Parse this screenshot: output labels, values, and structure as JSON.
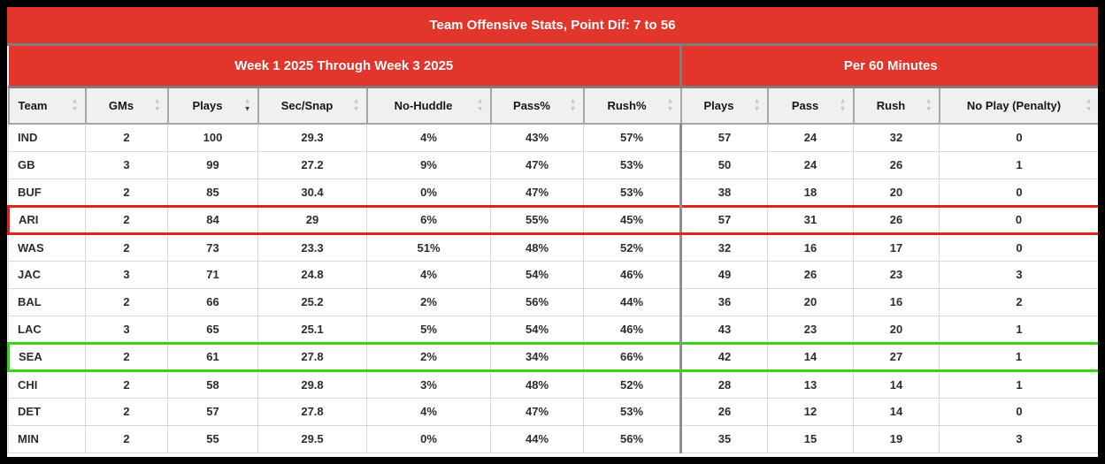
{
  "title": "Team Offensive Stats, Point Dif: 7 to 56",
  "colors": {
    "header_red": "#e2352b",
    "highlight_red": "#e0241c",
    "highlight_green": "#38d313"
  },
  "sort_icons": {
    "up": "▲",
    "down": "▼"
  },
  "sections": [
    {
      "label": "Week 1 2025 Through Week 3 2025"
    },
    {
      "label": "Per 60 Minutes"
    }
  ],
  "columns": [
    {
      "label": "Team",
      "sort": null
    },
    {
      "label": "GMs",
      "sort": null
    },
    {
      "label": "Plays",
      "sort": "desc"
    },
    {
      "label": "Sec/Snap",
      "sort": null
    },
    {
      "label": "No-Huddle",
      "sort": null
    },
    {
      "label": "Pass%",
      "sort": null
    },
    {
      "label": "Rush%",
      "sort": null
    },
    {
      "label": "Plays",
      "sort": null
    },
    {
      "label": "Pass",
      "sort": null
    },
    {
      "label": "Rush",
      "sort": null
    },
    {
      "label": "No Play (Penalty)",
      "sort": null
    }
  ],
  "rows": [
    {
      "cells": [
        "IND",
        "2",
        "100",
        "29.3",
        "4%",
        "43%",
        "57%",
        "57",
        "24",
        "32",
        "0"
      ],
      "highlight": null
    },
    {
      "cells": [
        "GB",
        "3",
        "99",
        "27.2",
        "9%",
        "47%",
        "53%",
        "50",
        "24",
        "26",
        "1"
      ],
      "highlight": null
    },
    {
      "cells": [
        "BUF",
        "2",
        "85",
        "30.4",
        "0%",
        "47%",
        "53%",
        "38",
        "18",
        "20",
        "0"
      ],
      "highlight": null
    },
    {
      "cells": [
        "ARI",
        "2",
        "84",
        "29",
        "6%",
        "55%",
        "45%",
        "57",
        "31",
        "26",
        "0"
      ],
      "highlight": "red"
    },
    {
      "cells": [
        "WAS",
        "2",
        "73",
        "23.3",
        "51%",
        "48%",
        "52%",
        "32",
        "16",
        "17",
        "0"
      ],
      "highlight": null
    },
    {
      "cells": [
        "JAC",
        "3",
        "71",
        "24.8",
        "4%",
        "54%",
        "46%",
        "49",
        "26",
        "23",
        "3"
      ],
      "highlight": null
    },
    {
      "cells": [
        "BAL",
        "2",
        "66",
        "25.2",
        "2%",
        "56%",
        "44%",
        "36",
        "20",
        "16",
        "2"
      ],
      "highlight": null
    },
    {
      "cells": [
        "LAC",
        "3",
        "65",
        "25.1",
        "5%",
        "54%",
        "46%",
        "43",
        "23",
        "20",
        "1"
      ],
      "highlight": null
    },
    {
      "cells": [
        "SEA",
        "2",
        "61",
        "27.8",
        "2%",
        "34%",
        "66%",
        "42",
        "14",
        "27",
        "1"
      ],
      "highlight": "green"
    },
    {
      "cells": [
        "CHI",
        "2",
        "58",
        "29.8",
        "3%",
        "48%",
        "52%",
        "28",
        "13",
        "14",
        "1"
      ],
      "highlight": null
    },
    {
      "cells": [
        "DET",
        "2",
        "57",
        "27.8",
        "4%",
        "47%",
        "53%",
        "26",
        "12",
        "14",
        "0"
      ],
      "highlight": null
    },
    {
      "cells": [
        "MIN",
        "2",
        "55",
        "29.5",
        "0%",
        "44%",
        "56%",
        "35",
        "15",
        "19",
        "3"
      ],
      "highlight": null
    }
  ]
}
